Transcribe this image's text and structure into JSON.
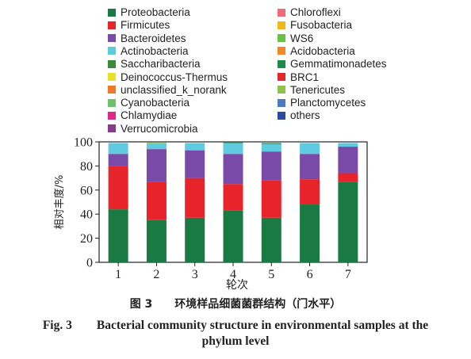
{
  "chart_data": {
    "type": "bar",
    "stacked": true,
    "categories": [
      "1",
      "2",
      "3",
      "4",
      "5",
      "6",
      "7"
    ],
    "xlabel": "轮次",
    "ylabel": "相对丰度/%",
    "ylim": [
      0,
      100
    ],
    "yticks": [
      0,
      20,
      40,
      60,
      80,
      100
    ],
    "grid": false,
    "legend_position": "top",
    "series": [
      {
        "name": "Proteobacteria",
        "color": "#1b7a44",
        "values": [
          44,
          35,
          37,
          43,
          37,
          48,
          67
        ]
      },
      {
        "name": "Firmicutes",
        "color": "#e8242b",
        "values": [
          36,
          32,
          33,
          22,
          31,
          21,
          7
        ]
      },
      {
        "name": "Bacteroidetes",
        "color": "#7a4aa8",
        "values": [
          10,
          27,
          23,
          25,
          24,
          21,
          22
        ]
      },
      {
        "name": "Actinobacteria",
        "color": "#5fcbe0",
        "values": [
          9,
          5,
          6,
          9,
          6,
          9,
          3
        ]
      },
      {
        "name": "Saccharibacteria",
        "color": "#3a8a3a",
        "values": [
          0,
          0,
          0,
          0,
          0.5,
          0,
          0
        ]
      },
      {
        "name": "Deinococcus-Thermus",
        "color": "#e8e02a",
        "values": [
          0,
          0.3,
          0,
          0,
          0,
          0,
          0
        ]
      },
      {
        "name": "unclassified_k_norank",
        "color": "#f07a2a",
        "values": [
          0,
          0,
          0,
          0,
          0,
          0,
          0
        ]
      },
      {
        "name": "Cyanobacteria",
        "color": "#6ec26e",
        "values": [
          0,
          0,
          0,
          0,
          0,
          0,
          0
        ]
      },
      {
        "name": "Chlamydiae",
        "color": "#e0288a",
        "values": [
          0,
          0,
          0,
          0,
          0,
          0,
          0
        ]
      },
      {
        "name": "Verrucomicrobia",
        "color": "#8a3a8a",
        "values": [
          0,
          0,
          0,
          0,
          0,
          0,
          0
        ]
      },
      {
        "name": "Chloroflexi",
        "color": "#f06a7a",
        "values": [
          0,
          0,
          0,
          0,
          0,
          0,
          0
        ]
      },
      {
        "name": "Fusobacteria",
        "color": "#f2b51a",
        "values": [
          0,
          0,
          0,
          0,
          0,
          0,
          0
        ]
      },
      {
        "name": "WS6",
        "color": "#6abf4a",
        "values": [
          0,
          0.5,
          0,
          0,
          0,
          0,
          0
        ]
      },
      {
        "name": "Acidobacteria",
        "color": "#f0882a",
        "values": [
          0,
          0,
          0,
          0,
          0,
          0,
          0
        ]
      },
      {
        "name": "Gemmatimonadetes",
        "color": "#1f8a4a",
        "values": [
          0,
          0,
          0,
          0.5,
          0.5,
          0,
          0
        ]
      },
      {
        "name": "BRC1",
        "color": "#e02a2a",
        "values": [
          0,
          0,
          0,
          0,
          0,
          0,
          0
        ]
      },
      {
        "name": "Tenericutes",
        "color": "#8ec24a",
        "values": [
          0,
          0,
          0,
          0,
          0,
          0,
          0
        ]
      },
      {
        "name": "Planctomycetes",
        "color": "#4a7ac2",
        "values": [
          0,
          0,
          0,
          0,
          0,
          0,
          0
        ]
      },
      {
        "name": "others",
        "color": "#2a4aa0",
        "values": [
          0,
          0,
          0,
          0,
          0,
          0,
          0
        ]
      }
    ]
  },
  "legend": {
    "left_column": [
      "Proteobacteria",
      "Firmicutes",
      "Bacteroidetes",
      "Actinobacteria",
      "Saccharibacteria",
      "Deinococcus-Thermus",
      "unclassified_k_norank",
      "Cyanobacteria",
      "Chlamydiae",
      "Verrucomicrobia"
    ],
    "right_column": [
      "Chloroflexi",
      "Fusobacteria",
      "WS6",
      "Acidobacteria",
      "Gemmatimonadetes",
      "BRC1",
      "Tenericutes",
      "Planctomycetes",
      "others"
    ]
  },
  "caption": {
    "cn": "图 3　　环境样品细菌菌群结构（门水平）",
    "en_line1": "Fig. 3　　Bacterial community structure in environmental samples at the",
    "en_line2": "phylum level"
  }
}
